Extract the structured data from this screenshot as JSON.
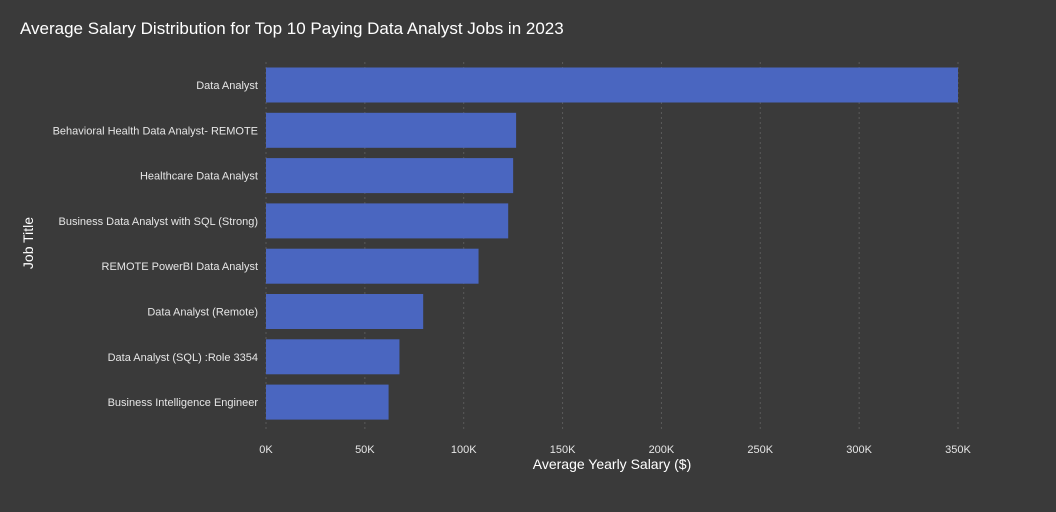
{
  "chart_data": {
    "type": "bar",
    "orientation": "horizontal",
    "title": "Average Salary Distribution for Top 10 Paying Data Analyst Jobs in 2023",
    "xlabel": "Average Yearly Salary ($)",
    "ylabel": "Job Title",
    "xlim": [
      0,
      350000
    ],
    "xticks": [
      0,
      50000,
      100000,
      150000,
      200000,
      250000,
      300000,
      350000
    ],
    "xtick_labels": [
      "0K",
      "50K",
      "100K",
      "150K",
      "200K",
      "250K",
      "300K",
      "350K"
    ],
    "grid": "vertical",
    "legend": "none",
    "categories": [
      "Data Analyst",
      "Behavioral Health Data Analyst- REMOTE",
      "Healthcare Data Analyst",
      "Business Data Analyst with SQL (Strong)",
      "REMOTE PowerBI Data Analyst",
      "Data Analyst (Remote)",
      "Data Analyst (SQL) :Role 3354",
      "Business Intelligence Engineer"
    ],
    "values": [
      350000,
      126500,
      125000,
      122500,
      107500,
      79500,
      67500,
      62000
    ],
    "colors": {
      "bar": "#4a66c0",
      "background": "#3a3a3a",
      "text": "#ffffff",
      "tick_text": "#e6e6e6",
      "grid": "#5a5a5a"
    }
  }
}
